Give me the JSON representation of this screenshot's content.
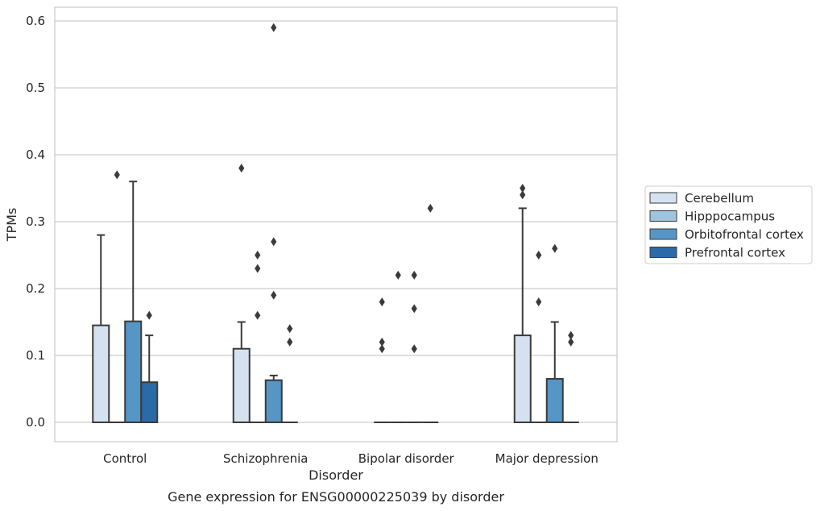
{
  "chart_data": {
    "type": "box",
    "title": "",
    "caption": "Gene expression for ENSG00000225039 by disorder",
    "xlabel": "Disorder",
    "ylabel": "TPMs",
    "ylim": [
      -0.028,
      0.62
    ],
    "yticks": [
      0.0,
      0.1,
      0.2,
      0.3,
      0.4,
      0.5,
      0.6
    ],
    "ytick_labels": [
      "0.0",
      "0.1",
      "0.2",
      "0.3",
      "0.4",
      "0.5",
      "0.6"
    ],
    "grid": "horizontal",
    "legend_position": "right",
    "categories": [
      "Control",
      "Schizophrenia",
      "Bipolar disorder",
      "Major depression"
    ],
    "series": [
      {
        "name": "Cerebellum",
        "color": "#d4e2f0",
        "boxes": [
          {
            "q1": 0.0,
            "median": 0.0,
            "q3": 0.145,
            "whisker_low": 0.0,
            "whisker_high": 0.28,
            "outliers": []
          },
          {
            "q1": 0.0,
            "median": 0.0,
            "q3": 0.11,
            "whisker_low": 0.0,
            "whisker_high": 0.15,
            "outliers": [
              0.38
            ]
          },
          {
            "q1": 0.0,
            "median": 0.0,
            "q3": 0.0,
            "whisker_low": 0.0,
            "whisker_high": 0.0,
            "outliers": [
              0.18,
              0.12,
              0.11
            ]
          },
          {
            "q1": 0.0,
            "median": 0.0,
            "q3": 0.13,
            "whisker_low": 0.0,
            "whisker_high": 0.32,
            "outliers": [
              0.35,
              0.34
            ]
          }
        ]
      },
      {
        "name": "Hipppocampus",
        "color": "#9fc4de",
        "boxes": [
          {
            "q1": 0.0,
            "median": 0.0,
            "q3": 0.0,
            "whisker_low": 0.0,
            "whisker_high": 0.0,
            "outliers": [
              0.37
            ]
          },
          {
            "q1": 0.0,
            "median": 0.0,
            "q3": 0.0,
            "whisker_low": 0.0,
            "whisker_high": 0.0,
            "outliers": [
              0.25,
              0.23,
              0.16
            ]
          },
          {
            "q1": 0.0,
            "median": 0.0,
            "q3": 0.0,
            "whisker_low": 0.0,
            "whisker_high": 0.0,
            "outliers": [
              0.22
            ]
          },
          {
            "q1": 0.0,
            "median": 0.0,
            "q3": 0.0,
            "whisker_low": 0.0,
            "whisker_high": 0.0,
            "outliers": [
              0.25,
              0.18
            ]
          }
        ]
      },
      {
        "name": "Orbitofrontal cortex",
        "color": "#5596c6",
        "boxes": [
          {
            "q1": 0.0,
            "median": 0.0,
            "q3": 0.151,
            "whisker_low": 0.0,
            "whisker_high": 0.36,
            "outliers": []
          },
          {
            "q1": 0.0,
            "median": 0.0,
            "q3": 0.063,
            "whisker_low": 0.0,
            "whisker_high": 0.07,
            "outliers": [
              0.59,
              0.27,
              0.19
            ]
          },
          {
            "q1": 0.0,
            "median": 0.0,
            "q3": 0.0,
            "whisker_low": 0.0,
            "whisker_high": 0.0,
            "outliers": [
              0.22,
              0.17,
              0.11
            ]
          },
          {
            "q1": 0.0,
            "median": 0.0,
            "q3": 0.065,
            "whisker_low": 0.0,
            "whisker_high": 0.15,
            "outliers": [
              0.26
            ]
          }
        ]
      },
      {
        "name": "Prefrontal cortex",
        "color": "#2a6aa8",
        "boxes": [
          {
            "q1": 0.0,
            "median": 0.0,
            "q3": 0.06,
            "whisker_low": 0.0,
            "whisker_high": 0.13,
            "outliers": [
              0.16
            ]
          },
          {
            "q1": 0.0,
            "median": 0.0,
            "q3": 0.0,
            "whisker_low": 0.0,
            "whisker_high": 0.0,
            "outliers": [
              0.14,
              0.12
            ]
          },
          {
            "q1": 0.0,
            "median": 0.0,
            "q3": 0.0,
            "whisker_low": 0.0,
            "whisker_high": 0.0,
            "outliers": [
              0.32
            ]
          },
          {
            "q1": 0.0,
            "median": 0.0,
            "q3": 0.0,
            "whisker_low": 0.0,
            "whisker_high": 0.0,
            "outliers": [
              0.13,
              0.12
            ]
          }
        ]
      }
    ]
  }
}
